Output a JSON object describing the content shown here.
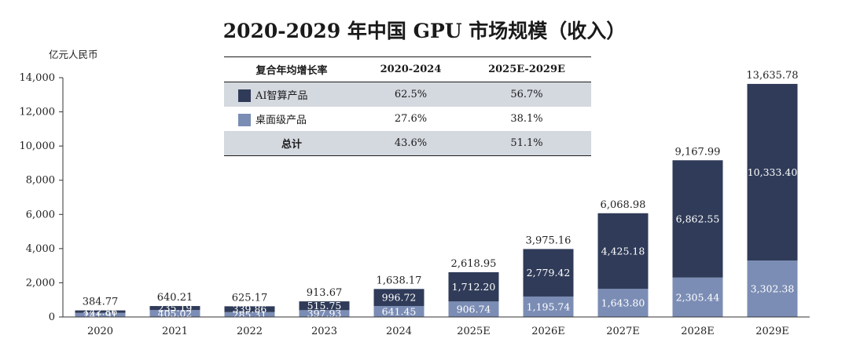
{
  "chart_data": {
    "type": "bar",
    "stacked": true,
    "title": "2020-2029 年中国 GPU 市场规模（收入）",
    "ylabel": "亿元人民币",
    "ylim": [
      0,
      14000
    ],
    "yticks": [
      "0",
      "2,000",
      "4,000",
      "6,000",
      "8,000",
      "10,000",
      "12,000",
      "14,000"
    ],
    "ytick_values": [
      0,
      2000,
      4000,
      6000,
      8000,
      10000,
      12000,
      14000
    ],
    "categories": [
      "2020",
      "2021",
      "2022",
      "2023",
      "2024",
      "2025E",
      "2026E",
      "2027E",
      "2028E",
      "2029E"
    ],
    "series": [
      {
        "name": "桌面级产品",
        "color": "#7b8db5",
        "values": [
          241.91,
          405.02,
          285.31,
          397.93,
          641.45,
          906.74,
          1195.74,
          1643.8,
          2305.44,
          3302.38
        ],
        "labels": [
          "241.91",
          "405.02",
          "285.31",
          "397.93",
          "641.45",
          "906.74",
          "1,195.74",
          "1,643.80",
          "2,305.44",
          "3,302.38"
        ]
      },
      {
        "name": "AI智算产品",
        "color": "#2f3b58",
        "values": [
          142.86,
          235.19,
          339.86,
          515.75,
          996.72,
          1712.2,
          2779.42,
          4425.18,
          6862.55,
          10333.4
        ],
        "labels": [
          "142.86",
          "235.19",
          "339.86",
          "515.75",
          "996.72",
          "1,712.20",
          "2,779.42",
          "4,425.18",
          "6,862.55",
          "10,333.40"
        ]
      }
    ],
    "totals": [
      "384.77",
      "640.21",
      "625.17",
      "913.67",
      "1,638.17",
      "2,618.95",
      "3,975.16",
      "6,068.98",
      "9,167.99",
      "13,635.78"
    ],
    "total_values": [
      384.77,
      640.21,
      625.17,
      913.67,
      1638.17,
      2618.95,
      3975.16,
      6068.98,
      9167.99,
      13635.78
    ],
    "grid": false
  },
  "cagr_table": {
    "headers": [
      "复合年均增长率",
      "2020-2024",
      "2025E-2029E"
    ],
    "rows": [
      {
        "name": "AI智算产品",
        "swatch": "ai",
        "a": "62.5%",
        "b": "56.7%",
        "shaded": true
      },
      {
        "name": "桌面级产品",
        "swatch": "desk",
        "a": "27.6%",
        "b": "38.1%",
        "shaded": false
      },
      {
        "name": "总计",
        "swatch": "",
        "a": "43.6%",
        "b": "51.1%",
        "shaded": true
      }
    ]
  }
}
